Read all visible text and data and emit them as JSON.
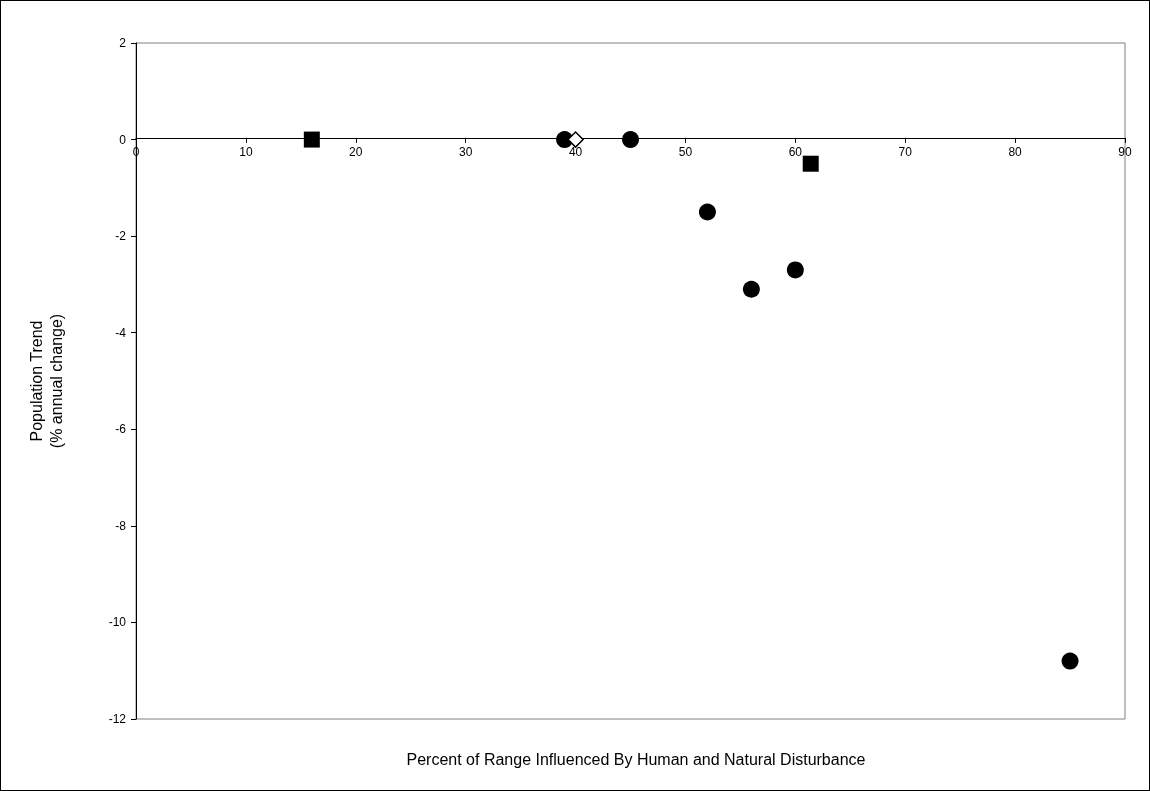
{
  "chart_data": {
    "type": "scatter",
    "xlabel": "Percent of Range Influenced By Human and Natural Disturbance",
    "ylabel": "Population Trend\n(% annual change)",
    "xlim": [
      0,
      90
    ],
    "xticks": [
      0,
      10,
      20,
      30,
      40,
      50,
      60,
      70,
      80,
      90
    ],
    "ylim": [
      -12,
      2
    ],
    "yticks": [
      -12,
      -10,
      -8,
      -6,
      -4,
      -2,
      0,
      2
    ],
    "series": [
      {
        "color": "#000000",
        "marker": "circle",
        "x": [
          39,
          45,
          52,
          56,
          60,
          85
        ],
        "values": [
          0,
          0,
          -1.5,
          -3.1,
          -2.7,
          -10.8
        ]
      },
      {
        "color": "#000000",
        "marker": "square",
        "x": [
          16,
          61.4
        ],
        "values": [
          0,
          -0.5
        ]
      },
      {
        "color": "#000000",
        "marker": "diamond",
        "x": [
          40
        ],
        "values": [
          0
        ]
      }
    ]
  }
}
